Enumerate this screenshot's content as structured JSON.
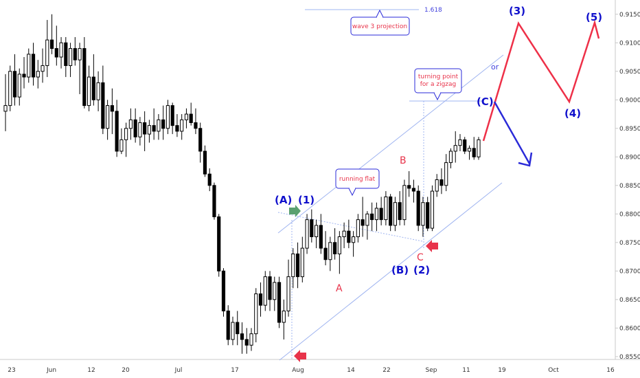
{
  "chart_data": {
    "type": "candlestick",
    "instrument_scale": "price",
    "ylim": [
      0.8545,
      0.9175
    ],
    "y_ticks": [
      "0.91500",
      "0.91000",
      "0.90500",
      "0.90000",
      "0.89500",
      "0.89000",
      "0.88500",
      "0.88000",
      "0.87500",
      "0.87000",
      "0.86500",
      "0.86000",
      "0.85500"
    ],
    "x_ticks": [
      "23",
      "Jun",
      "12",
      "20",
      "Jul",
      "17",
      "Aug",
      "14",
      "22",
      "Sep",
      "11",
      "19",
      "Oct",
      "16"
    ],
    "candles": [
      [
        0.898,
        0.9045,
        0.8945,
        0.899
      ],
      [
        0.899,
        0.906,
        0.898,
        0.905
      ],
      [
        0.905,
        0.908,
        0.899,
        0.9005
      ],
      [
        0.9005,
        0.9055,
        0.899,
        0.9045
      ],
      [
        0.9045,
        0.9075,
        0.902,
        0.904
      ],
      [
        0.904,
        0.909,
        0.903,
        0.908
      ],
      [
        0.908,
        0.91,
        0.9025,
        0.904
      ],
      [
        0.904,
        0.907,
        0.902,
        0.905
      ],
      [
        0.905,
        0.909,
        0.903,
        0.906
      ],
      [
        0.906,
        0.914,
        0.904,
        0.9105
      ],
      [
        0.9105,
        0.915,
        0.908,
        0.909
      ],
      [
        0.909,
        0.913,
        0.906,
        0.9075
      ],
      [
        0.9075,
        0.911,
        0.9055,
        0.91
      ],
      [
        0.91,
        0.911,
        0.904,
        0.906
      ],
      [
        0.906,
        0.91,
        0.904,
        0.909
      ],
      [
        0.909,
        0.911,
        0.906,
        0.907
      ],
      [
        0.907,
        0.91,
        0.901,
        0.909
      ],
      [
        0.909,
        0.911,
        0.8985,
        0.899
      ],
      [
        0.899,
        0.906,
        0.898,
        0.904
      ],
      [
        0.904,
        0.908,
        0.899,
        0.9
      ],
      [
        0.9,
        0.905,
        0.898,
        0.903
      ],
      [
        0.903,
        0.906,
        0.894,
        0.895
      ],
      [
        0.895,
        0.9,
        0.893,
        0.899
      ],
      [
        0.899,
        0.902,
        0.894,
        0.898
      ],
      [
        0.898,
        0.9,
        0.89,
        0.891
      ],
      [
        0.891,
        0.895,
        0.8905,
        0.893
      ],
      [
        0.893,
        0.896,
        0.89,
        0.895
      ],
      [
        0.895,
        0.8985,
        0.893,
        0.8965
      ],
      [
        0.8965,
        0.8985,
        0.8925,
        0.8935
      ],
      [
        0.8935,
        0.897,
        0.892,
        0.896
      ],
      [
        0.896,
        0.898,
        0.891,
        0.894
      ],
      [
        0.894,
        0.8965,
        0.8925,
        0.8955
      ],
      [
        0.8955,
        0.8985,
        0.893,
        0.8945
      ],
      [
        0.8945,
        0.8975,
        0.893,
        0.8965
      ],
      [
        0.8965,
        0.899,
        0.893,
        0.895
      ],
      [
        0.895,
        0.9,
        0.894,
        0.899
      ],
      [
        0.899,
        0.8995,
        0.894,
        0.8955
      ],
      [
        0.8955,
        0.8975,
        0.8935,
        0.8945
      ],
      [
        0.8945,
        0.8975,
        0.893,
        0.8965
      ],
      [
        0.8965,
        0.8985,
        0.895,
        0.8975
      ],
      [
        0.8975,
        0.8995,
        0.8955,
        0.896
      ],
      [
        0.896,
        0.8985,
        0.894,
        0.895
      ],
      [
        0.895,
        0.896,
        0.889,
        0.891
      ],
      [
        0.891,
        0.892,
        0.8865,
        0.887
      ],
      [
        0.887,
        0.888,
        0.884,
        0.885
      ],
      [
        0.885,
        0.8855,
        0.879,
        0.8795
      ],
      [
        0.8795,
        0.88,
        0.869,
        0.87
      ],
      [
        0.87,
        0.8705,
        0.862,
        0.863
      ],
      [
        0.863,
        0.864,
        0.857,
        0.858
      ],
      [
        0.858,
        0.862,
        0.857,
        0.861
      ],
      [
        0.861,
        0.863,
        0.857,
        0.859
      ],
      [
        0.859,
        0.861,
        0.8555,
        0.858
      ],
      [
        0.858,
        0.86,
        0.8555,
        0.857
      ],
      [
        0.857,
        0.86,
        0.856,
        0.859
      ],
      [
        0.859,
        0.867,
        0.8575,
        0.866
      ],
      [
        0.866,
        0.868,
        0.862,
        0.864
      ],
      [
        0.864,
        0.87,
        0.863,
        0.869
      ],
      [
        0.869,
        0.87,
        0.863,
        0.865
      ],
      [
        0.865,
        0.869,
        0.863,
        0.868
      ],
      [
        0.868,
        0.869,
        0.86,
        0.861
      ],
      [
        0.861,
        0.865,
        0.858,
        0.863
      ],
      [
        0.863,
        0.872,
        0.862,
        0.869
      ],
      [
        0.869,
        0.874,
        0.867,
        0.873
      ],
      [
        0.873,
        0.875,
        0.867,
        0.869
      ],
      [
        0.869,
        0.876,
        0.868,
        0.874
      ],
      [
        0.874,
        0.88,
        0.873,
        0.879
      ],
      [
        0.879,
        0.8808,
        0.875,
        0.876
      ],
      [
        0.876,
        0.879,
        0.874,
        0.878
      ],
      [
        0.878,
        0.88,
        0.873,
        0.874
      ],
      [
        0.874,
        0.877,
        0.871,
        0.872
      ],
      [
        0.872,
        0.876,
        0.87,
        0.875
      ],
      [
        0.875,
        0.8775,
        0.872,
        0.873
      ],
      [
        0.873,
        0.877,
        0.8695,
        0.876
      ],
      [
        0.876,
        0.8785,
        0.874,
        0.877
      ],
      [
        0.877,
        0.879,
        0.874,
        0.875
      ],
      [
        0.875,
        0.877,
        0.8725,
        0.876
      ],
      [
        0.876,
        0.88,
        0.875,
        0.879
      ],
      [
        0.879,
        0.883,
        0.876,
        0.878
      ],
      [
        0.878,
        0.8805,
        0.8755,
        0.88
      ],
      [
        0.88,
        0.882,
        0.877,
        0.879
      ],
      [
        0.879,
        0.882,
        0.877,
        0.881
      ],
      [
        0.881,
        0.883,
        0.878,
        0.879
      ],
      [
        0.879,
        0.884,
        0.878,
        0.883
      ],
      [
        0.883,
        0.8835,
        0.877,
        0.878
      ],
      [
        0.878,
        0.883,
        0.877,
        0.882
      ],
      [
        0.882,
        0.884,
        0.878,
        0.879
      ],
      [
        0.879,
        0.886,
        0.878,
        0.885
      ],
      [
        0.885,
        0.8875,
        0.883,
        0.8845
      ],
      [
        0.8845,
        0.886,
        0.882,
        0.884
      ],
      [
        0.884,
        0.885,
        0.877,
        0.878
      ],
      [
        0.878,
        0.883,
        0.876,
        0.882
      ],
      [
        0.882,
        0.883,
        0.877,
        0.8775
      ],
      [
        0.8775,
        0.885,
        0.877,
        0.884
      ],
      [
        0.884,
        0.887,
        0.883,
        0.886
      ],
      [
        0.886,
        0.888,
        0.8835,
        0.885
      ],
      [
        0.885,
        0.8905,
        0.884,
        0.889
      ],
      [
        0.889,
        0.8915,
        0.888,
        0.891
      ],
      [
        0.891,
        0.8945,
        0.889,
        0.892
      ],
      [
        0.892,
        0.894,
        0.891,
        0.893
      ],
      [
        0.893,
        0.8935,
        0.8905,
        0.891
      ],
      [
        0.891,
        0.892,
        0.8895,
        0.8915
      ],
      [
        0.8915,
        0.8935,
        0.8895,
        0.89
      ],
      [
        0.89,
        0.8935,
        0.8895,
        0.893
      ]
    ],
    "annotations": {
      "wave_labels_blue": [
        "(A)",
        "(1)",
        "(B)",
        "(2)",
        "(C)",
        "(3)",
        "(4)",
        "(5)"
      ],
      "wave_labels_red": [
        "A",
        "B",
        "C"
      ],
      "boxes": [
        "running flat",
        "wave 3 projection",
        "turning point\nfor a zigzag"
      ],
      "fib_level": "1.618",
      "or_label": "or",
      "colors": {
        "bull": "#ffffff",
        "bear": "#000000",
        "wave_blue": "#1010cc",
        "projection_red": "#ee3048",
        "channel": "#9fb4f0"
      }
    }
  }
}
